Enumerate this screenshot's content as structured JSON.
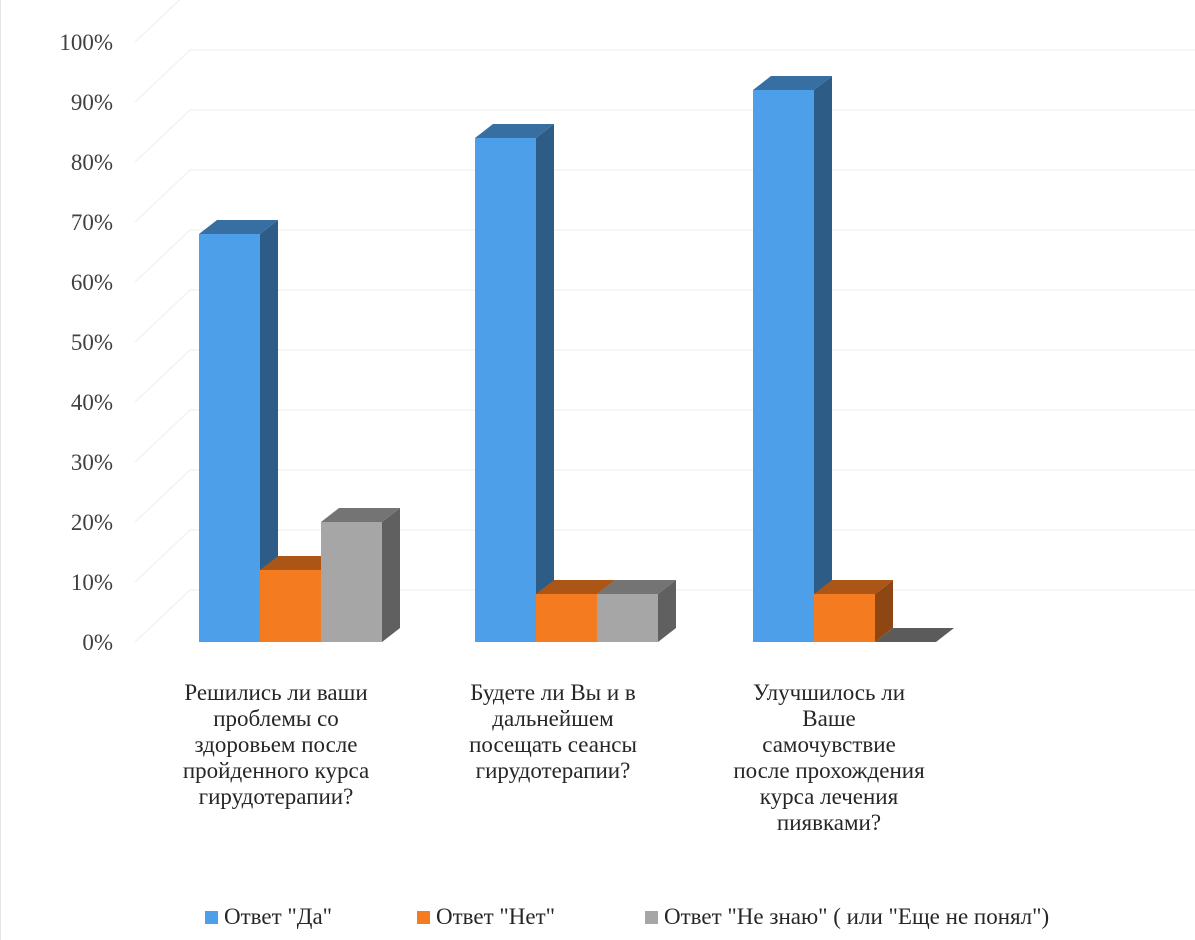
{
  "chart_data": {
    "type": "bar",
    "title": "",
    "xlabel": "",
    "ylabel": "",
    "ylim": [
      0,
      100
    ],
    "y_ticks": [
      "0%",
      "10%",
      "20%",
      "30%",
      "40%",
      "50%",
      "60%",
      "70%",
      "80%",
      "90%",
      "100%"
    ],
    "categories": [
      "Решились ли ваши проблемы со здоровьем после пройденного курса гирудотерапии?",
      "Будете ли Вы и в дальнейшем посещать сеансы гирудотерапии?",
      "Улучшилось ли Ваше самочувствие после прохождения курса лечения пиявками?"
    ],
    "series": [
      {
        "name": "Ответ \"Да\"",
        "values": [
          68,
          84,
          92
        ],
        "color": "#4e9fe9"
      },
      {
        "name": "Ответ \"Нет\"",
        "values": [
          12,
          8,
          8
        ],
        "color": "#f47b20"
      },
      {
        "name": "Ответ \"Не знаю\" ( или \"Еще не понял\")",
        "values": [
          20,
          8,
          0
        ],
        "color": "#a6a6a6"
      }
    ],
    "grid": true,
    "legend_position": "bottom",
    "style": "3d-clustered-column"
  },
  "labels": {
    "cat0": [
      "Решились ли ваши",
      "проблемы со",
      "здоровьем после",
      "пройденного курса",
      "гирудотерапии?"
    ],
    "cat1": [
      "Будете ли Вы и в",
      "дальнейшем",
      "посещать сеансы",
      "гирудотерапии?"
    ],
    "cat2": [
      "Улучшилось ли",
      "Ваше",
      "самочувствие",
      "после прохождения",
      "курса лечения",
      "пиявками?"
    ]
  }
}
